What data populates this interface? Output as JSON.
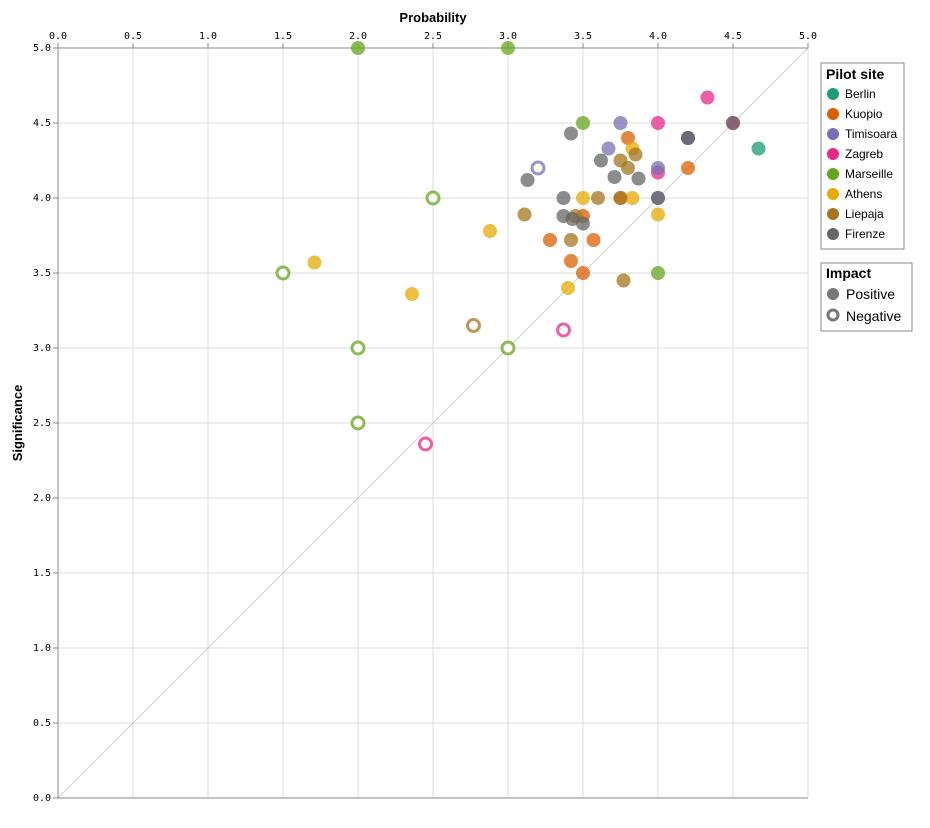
{
  "chart_data": {
    "type": "scatter",
    "title": "",
    "xlabel": "Probability",
    "ylabel": "Significance",
    "xlim": [
      0,
      5
    ],
    "ylim": [
      0,
      5
    ],
    "x_axis_position": "top",
    "grid": true,
    "reference_line": "y = x",
    "ticks": [
      "0.0",
      "0.5",
      "1.0",
      "1.5",
      "2.0",
      "2.5",
      "3.0",
      "3.5",
      "4.0",
      "4.5",
      "5.0"
    ],
    "legend_placement": "right",
    "color_legend": {
      "title": "Pilot site",
      "entries": [
        {
          "name": "Berlin",
          "color": "#1b9e77"
        },
        {
          "name": "Kuopio",
          "color": "#d95f02"
        },
        {
          "name": "Timisoara",
          "color": "#7570b3"
        },
        {
          "name": "Zagreb",
          "color": "#e7298a"
        },
        {
          "name": "Marseille",
          "color": "#66a61e"
        },
        {
          "name": "Athens",
          "color": "#e6ab02"
        },
        {
          "name": "Liepaja",
          "color": "#a6761d"
        },
        {
          "name": "Firenze",
          "color": "#666666"
        }
      ]
    },
    "shape_legend": {
      "title": "Impact",
      "entries": [
        {
          "name": "Positive",
          "style": "filled"
        },
        {
          "name": "Negative",
          "style": "hollow"
        }
      ]
    },
    "points": [
      {
        "site": "Marseille",
        "impact": "Positive",
        "x": 2.0,
        "y": 5.0
      },
      {
        "site": "Marseille",
        "impact": "Positive",
        "x": 3.0,
        "y": 5.0
      },
      {
        "site": "Marseille",
        "impact": "Positive",
        "x": 3.5,
        "y": 4.5
      },
      {
        "site": "Marseille",
        "impact": "Positive",
        "x": 4.0,
        "y": 3.5
      },
      {
        "site": "Marseille",
        "impact": "Negative",
        "x": 2.5,
        "y": 4.0
      },
      {
        "site": "Marseille",
        "impact": "Negative",
        "x": 1.5,
        "y": 3.5
      },
      {
        "site": "Marseille",
        "impact": "Negative",
        "x": 2.0,
        "y": 3.0
      },
      {
        "site": "Marseille",
        "impact": "Negative",
        "x": 3.0,
        "y": 3.0
      },
      {
        "site": "Marseille",
        "impact": "Negative",
        "x": 2.0,
        "y": 2.5
      },
      {
        "site": "Zagreb",
        "impact": "Positive",
        "x": 4.33,
        "y": 4.67
      },
      {
        "site": "Zagreb",
        "impact": "Positive",
        "x": 4.0,
        "y": 4.5
      },
      {
        "site": "Zagreb",
        "impact": "Positive",
        "x": 4.0,
        "y": 4.17
      },
      {
        "site": "Zagreb",
        "impact": "Positive",
        "x": 4.5,
        "y": 4.5
      },
      {
        "site": "Zagreb",
        "impact": "Positive",
        "x": 4.2,
        "y": 4.4
      },
      {
        "site": "Zagreb",
        "impact": "Negative",
        "x": 2.45,
        "y": 2.36
      },
      {
        "site": "Zagreb",
        "impact": "Negative",
        "x": 3.37,
        "y": 3.12
      },
      {
        "site": "Berlin",
        "impact": "Positive",
        "x": 4.67,
        "y": 4.33
      },
      {
        "site": "Timisoara",
        "impact": "Positive",
        "x": 3.75,
        "y": 4.5
      },
      {
        "site": "Timisoara",
        "impact": "Positive",
        "x": 3.67,
        "y": 4.33
      },
      {
        "site": "Timisoara",
        "impact": "Positive",
        "x": 4.0,
        "y": 4.2
      },
      {
        "site": "Timisoara",
        "impact": "Positive",
        "x": 4.0,
        "y": 4.0
      },
      {
        "site": "Timisoara",
        "impact": "Positive",
        "x": 4.2,
        "y": 4.4
      },
      {
        "site": "Timisoara",
        "impact": "Negative",
        "x": 3.2,
        "y": 4.2
      },
      {
        "site": "Kuopio",
        "impact": "Positive",
        "x": 3.8,
        "y": 4.4
      },
      {
        "site": "Kuopio",
        "impact": "Positive",
        "x": 4.2,
        "y": 4.2
      },
      {
        "site": "Kuopio",
        "impact": "Positive",
        "x": 3.5,
        "y": 3.88
      },
      {
        "site": "Kuopio",
        "impact": "Positive",
        "x": 3.28,
        "y": 3.72
      },
      {
        "site": "Kuopio",
        "impact": "Positive",
        "x": 3.57,
        "y": 3.72
      },
      {
        "site": "Kuopio",
        "impact": "Positive",
        "x": 3.42,
        "y": 3.58
      },
      {
        "site": "Kuopio",
        "impact": "Positive",
        "x": 3.5,
        "y": 3.5
      },
      {
        "site": "Kuopio",
        "impact": "Positive",
        "x": 3.75,
        "y": 4.0
      },
      {
        "site": "Athens",
        "impact": "Positive",
        "x": 3.83,
        "y": 4.33
      },
      {
        "site": "Athens",
        "impact": "Positive",
        "x": 3.5,
        "y": 4.0
      },
      {
        "site": "Athens",
        "impact": "Positive",
        "x": 3.83,
        "y": 4.0
      },
      {
        "site": "Athens",
        "impact": "Positive",
        "x": 4.0,
        "y": 3.89
      },
      {
        "site": "Athens",
        "impact": "Positive",
        "x": 2.88,
        "y": 3.78
      },
      {
        "site": "Athens",
        "impact": "Positive",
        "x": 1.71,
        "y": 3.57
      },
      {
        "site": "Athens",
        "impact": "Positive",
        "x": 2.36,
        "y": 3.36
      },
      {
        "site": "Athens",
        "impact": "Positive",
        "x": 3.4,
        "y": 3.4
      },
      {
        "site": "Liepaja",
        "impact": "Positive",
        "x": 3.85,
        "y": 4.29
      },
      {
        "site": "Liepaja",
        "impact": "Positive",
        "x": 3.75,
        "y": 4.25
      },
      {
        "site": "Liepaja",
        "impact": "Positive",
        "x": 3.8,
        "y": 4.2
      },
      {
        "site": "Liepaja",
        "impact": "Positive",
        "x": 3.75,
        "y": 4.0
      },
      {
        "site": "Liepaja",
        "impact": "Positive",
        "x": 3.6,
        "y": 4.0
      },
      {
        "site": "Liepaja",
        "impact": "Positive",
        "x": 3.11,
        "y": 3.89
      },
      {
        "site": "Liepaja",
        "impact": "Positive",
        "x": 3.45,
        "y": 3.88
      },
      {
        "site": "Liepaja",
        "impact": "Positive",
        "x": 3.42,
        "y": 3.72
      },
      {
        "site": "Liepaja",
        "impact": "Positive",
        "x": 3.77,
        "y": 3.45
      },
      {
        "site": "Liepaja",
        "impact": "Negative",
        "x": 2.77,
        "y": 3.15
      },
      {
        "site": "Firenze",
        "impact": "Positive",
        "x": 3.42,
        "y": 4.43
      },
      {
        "site": "Firenze",
        "impact": "Positive",
        "x": 3.62,
        "y": 4.25
      },
      {
        "site": "Firenze",
        "impact": "Positive",
        "x": 3.71,
        "y": 4.14
      },
      {
        "site": "Firenze",
        "impact": "Positive",
        "x": 3.87,
        "y": 4.13
      },
      {
        "site": "Firenze",
        "impact": "Positive",
        "x": 3.13,
        "y": 4.12
      },
      {
        "site": "Firenze",
        "impact": "Positive",
        "x": 3.37,
        "y": 4.0
      },
      {
        "site": "Firenze",
        "impact": "Positive",
        "x": 3.37,
        "y": 3.88
      },
      {
        "site": "Firenze",
        "impact": "Positive",
        "x": 3.43,
        "y": 3.86
      },
      {
        "site": "Firenze",
        "impact": "Positive",
        "x": 3.5,
        "y": 3.83
      },
      {
        "site": "Firenze",
        "impact": "Positive",
        "x": 4.0,
        "y": 4.0
      },
      {
        "site": "Firenze",
        "impact": "Positive",
        "x": 4.5,
        "y": 4.5
      },
      {
        "site": "Firenze",
        "impact": "Positive",
        "x": 4.2,
        "y": 4.4
      }
    ]
  }
}
